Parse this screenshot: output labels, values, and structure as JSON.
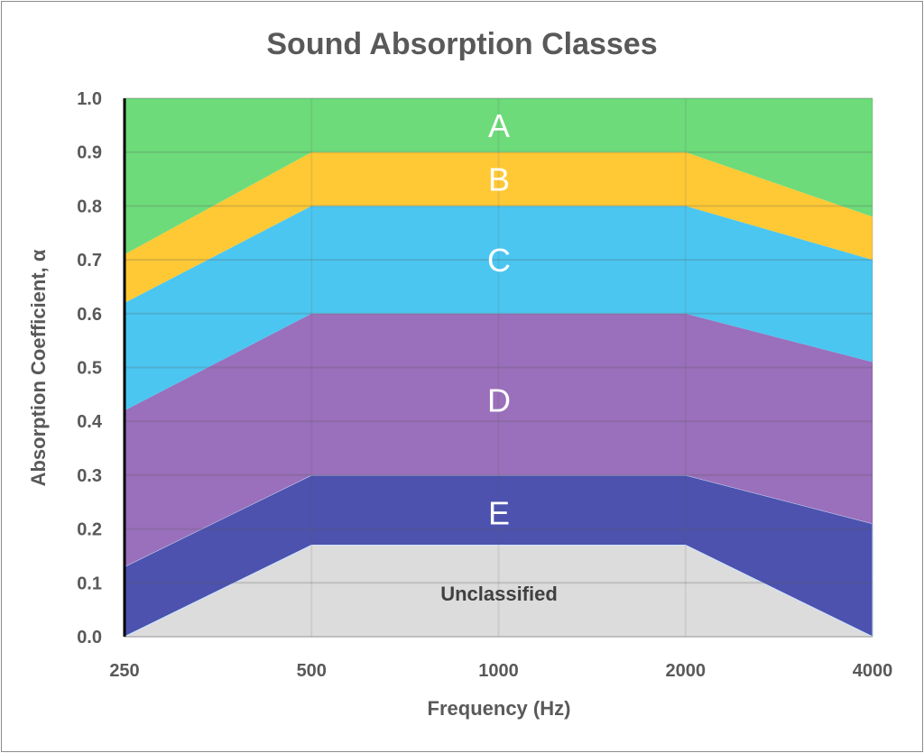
{
  "chart_data": {
    "type": "area",
    "title": "Sound Absorption Classes",
    "xlabel": "Frequency (Hz)",
    "ylabel": "Absorption Coefficient, α",
    "categories": [
      "250",
      "500",
      "1000",
      "2000",
      "4000"
    ],
    "ylim": [
      0,
      1.0
    ],
    "yticks": [
      "0.0",
      "0.1",
      "0.2",
      "0.3",
      "0.4",
      "0.5",
      "0.6",
      "0.7",
      "0.8",
      "0.9",
      "1.0"
    ],
    "grid": true,
    "boundaries": [
      {
        "name": "Unclassified/E",
        "values": [
          0.0,
          0.17,
          0.17,
          0.17,
          0.0
        ]
      },
      {
        "name": "E/D",
        "values": [
          0.13,
          0.3,
          0.3,
          0.3,
          0.21
        ]
      },
      {
        "name": "D/C",
        "values": [
          0.42,
          0.6,
          0.6,
          0.6,
          0.51
        ]
      },
      {
        "name": "C/B",
        "values": [
          0.62,
          0.8,
          0.8,
          0.8,
          0.7
        ]
      },
      {
        "name": "B/A",
        "values": [
          0.71,
          0.9,
          0.9,
          0.9,
          0.78
        ]
      }
    ],
    "bands": [
      {
        "label": "Unclassified",
        "color": "#dcdcdc",
        "label_y": 0.08,
        "dark": true
      },
      {
        "label": "E",
        "color": "#4c52ad",
        "label_y": 0.23
      },
      {
        "label": "D",
        "color": "#9a6fbb",
        "label_y": 0.44
      },
      {
        "label": "C",
        "color": "#4bc6f1",
        "label_y": 0.7
      },
      {
        "label": "B",
        "color": "#ffc935",
        "label_y": 0.85
      },
      {
        "label": "A",
        "color": "#6ddb7a",
        "label_y": 0.95
      }
    ]
  }
}
